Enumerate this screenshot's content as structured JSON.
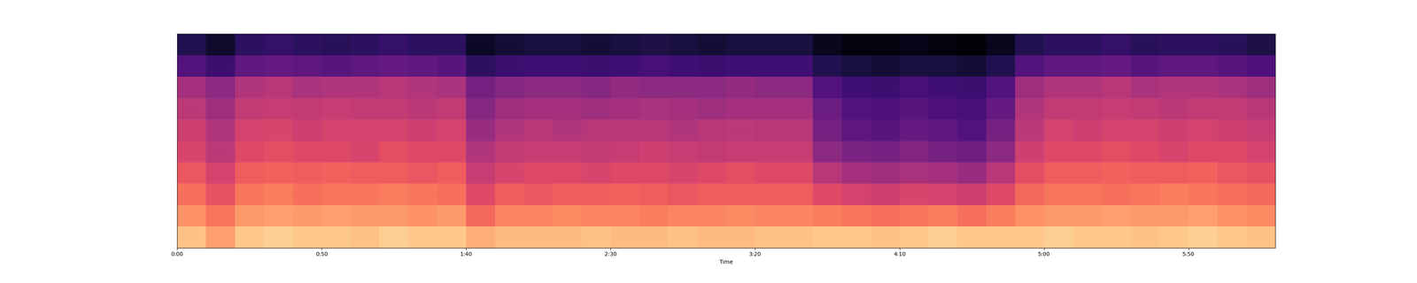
{
  "chart_data": {
    "type": "heatmap",
    "xlabel": "Time",
    "xlim": [
      0,
      380
    ],
    "xticks": [
      {
        "value": 0,
        "label": "0:00"
      },
      {
        "value": 50,
        "label": "0:50"
      },
      {
        "value": 100,
        "label": "1:40"
      },
      {
        "value": 150,
        "label": "2:30"
      },
      {
        "value": 200,
        "label": "3:20"
      },
      {
        "value": 250,
        "label": "4:10"
      },
      {
        "value": 300,
        "label": "5:00"
      },
      {
        "value": 350,
        "label": "5:50"
      }
    ],
    "tick_labels": "x",
    "color": "magma",
    "color_range": [
      -70,
      0
    ],
    "time_edges": [
      0,
      10,
      20,
      30,
      40,
      50,
      60,
      70,
      80,
      90,
      100,
      110,
      120,
      130,
      140,
      150,
      160,
      170,
      180,
      190,
      200,
      210,
      220,
      230,
      240,
      250,
      260,
      270,
      280,
      290,
      300,
      310,
      320,
      330,
      340,
      350,
      360,
      370,
      380
    ],
    "cells": [
      [
        -9,
        -16,
        -21,
        -25,
        -29,
        -31,
        -34,
        -38,
        -52,
        -60
      ],
      [
        -14,
        -20,
        -26,
        -30,
        -34,
        -36,
        -39,
        -42,
        -56,
        -64
      ],
      [
        -8,
        -15,
        -20,
        -24,
        -28,
        -30,
        -33,
        -36,
        -50,
        -58
      ],
      [
        -7,
        -14,
        -19,
        -23,
        -27,
        -29,
        -32,
        -35,
        -49,
        -57
      ],
      [
        -8,
        -15,
        -21,
        -24,
        -28,
        -31,
        -33,
        -37,
        -50,
        -58
      ],
      [
        -8,
        -14,
        -20,
        -23,
        -28,
        -30,
        -32,
        -36,
        -51,
        -59
      ],
      [
        -9,
        -15,
        -20,
        -24,
        -29,
        -30,
        -33,
        -36,
        -50,
        -58
      ],
      [
        -7,
        -15,
        -19,
        -24,
        -27,
        -30,
        -33,
        -35,
        -49,
        -57
      ],
      [
        -8,
        -16,
        -20,
        -25,
        -28,
        -31,
        -34,
        -36,
        -50,
        -58
      ],
      [
        -8,
        -15,
        -21,
        -24,
        -28,
        -30,
        -33,
        -37,
        -51,
        -58
      ],
      [
        -12,
        -22,
        -28,
        -32,
        -36,
        -40,
        -43,
        -46,
        -58,
        -65
      ],
      [
        -10,
        -18,
        -24,
        -29,
        -33,
        -36,
        -39,
        -43,
        -56,
        -63
      ],
      [
        -10,
        -18,
        -25,
        -28,
        -32,
        -35,
        -38,
        -42,
        -55,
        -62
      ],
      [
        -10,
        -17,
        -24,
        -28,
        -32,
        -36,
        -38,
        -42,
        -55,
        -62
      ],
      [
        -9,
        -18,
        -24,
        -29,
        -33,
        -35,
        -39,
        -43,
        -56,
        -63
      ],
      [
        -10,
        -18,
        -23,
        -28,
        -32,
        -35,
        -38,
        -41,
        -55,
        -62
      ],
      [
        -10,
        -19,
        -24,
        -28,
        -31,
        -35,
        -37,
        -42,
        -54,
        -61
      ],
      [
        -9,
        -18,
        -25,
        -29,
        -32,
        -36,
        -38,
        -42,
        -55,
        -62
      ],
      [
        -10,
        -18,
        -24,
        -28,
        -33,
        -35,
        -39,
        -42,
        -56,
        -63
      ],
      [
        -10,
        -17,
        -24,
        -27,
        -32,
        -34,
        -38,
        -41,
        -55,
        -62
      ],
      [
        -9,
        -18,
        -24,
        -28,
        -32,
        -35,
        -38,
        -42,
        -55,
        -62
      ],
      [
        -9,
        -18,
        -24,
        -28,
        -32,
        -35,
        -38,
        -42,
        -55,
        -62
      ],
      [
        -8,
        -19,
        -28,
        -35,
        -42,
        -46,
        -48,
        -52,
        -60,
        -66
      ],
      [
        -8,
        -20,
        -30,
        -38,
        -45,
        -50,
        -52,
        -55,
        -62,
        -68
      ],
      [
        -9,
        -21,
        -31,
        -39,
        -46,
        -51,
        -53,
        -56,
        -63,
        -68
      ],
      [
        -8,
        -20,
        -29,
        -37,
        -44,
        -49,
        -51,
        -54,
        -62,
        -67
      ],
      [
        -7,
        -19,
        -30,
        -38,
        -46,
        -50,
        -53,
        -55,
        -62,
        -68
      ],
      [
        -8,
        -21,
        -31,
        -40,
        -47,
        -52,
        -54,
        -56,
        -63,
        -69
      ],
      [
        -8,
        -19,
        -28,
        -35,
        -42,
        -46,
        -49,
        -52,
        -60,
        -66
      ],
      [
        -8,
        -16,
        -22,
        -27,
        -31,
        -34,
        -36,
        -39,
        -52,
        -60
      ],
      [
        -7,
        -15,
        -20,
        -24,
        -28,
        -30,
        -33,
        -36,
        -50,
        -58
      ],
      [
        -8,
        -15,
        -20,
        -24,
        -28,
        -31,
        -33,
        -36,
        -50,
        -58
      ],
      [
        -8,
        -14,
        -21,
        -23,
        -27,
        -30,
        -32,
        -35,
        -49,
        -57
      ],
      [
        -9,
        -15,
        -20,
        -24,
        -28,
        -30,
        -33,
        -37,
        -51,
        -59
      ],
      [
        -8,
        -15,
        -19,
        -24,
        -29,
        -31,
        -34,
        -36,
        -50,
        -58
      ],
      [
        -7,
        -14,
        -20,
        -23,
        -28,
        -30,
        -33,
        -36,
        -50,
        -58
      ],
      [
        -8,
        -16,
        -21,
        -25,
        -28,
        -31,
        -33,
        -37,
        -51,
        -59
      ],
      [
        -9,
        -17,
        -22,
        -26,
        -30,
        -32,
        -35,
        -39,
        -53,
        -61
      ]
    ]
  }
}
